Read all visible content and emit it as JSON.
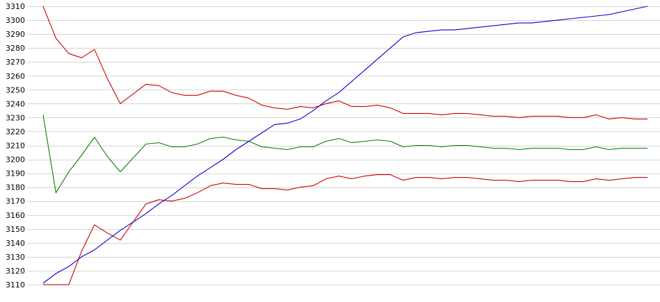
{
  "chart_data": {
    "type": "line",
    "title": "",
    "xlabel": "",
    "ylabel": "",
    "ylim": [
      3110,
      3310
    ],
    "y_ticks": [
      3110,
      3120,
      3130,
      3140,
      3150,
      3160,
      3170,
      3180,
      3190,
      3200,
      3210,
      3220,
      3230,
      3240,
      3250,
      3260,
      3270,
      3280,
      3290,
      3300,
      3310
    ],
    "grid": true,
    "legend": false,
    "x": [
      0,
      1,
      2,
      3,
      4,
      5,
      6,
      7,
      8,
      9,
      10,
      11,
      12,
      13,
      14,
      15,
      16,
      17,
      18,
      19,
      20,
      21,
      22,
      23,
      24,
      25,
      26,
      27,
      28,
      29,
      30,
      31,
      32,
      33,
      34,
      35,
      36,
      37,
      38,
      39,
      40,
      41,
      42,
      43,
      44,
      45,
      46,
      47
    ],
    "series": [
      {
        "color": "#cc0000",
        "values": [
          3310,
          3287,
          3276,
          3273,
          3279,
          3258,
          3240,
          3247,
          3254,
          3253,
          3248,
          3246,
          3246,
          3249,
          3249,
          3246,
          3244,
          3239,
          3237,
          3236,
          3238,
          3237,
          3240,
          3242,
          3238,
          3238,
          3239,
          3237,
          3233,
          3233,
          3233,
          3232,
          3233,
          3233,
          3232,
          3231,
          3231,
          3230,
          3231,
          3231,
          3231,
          3230,
          3230,
          3232,
          3229,
          3230,
          3229,
          3229
        ]
      },
      {
        "color": "#008000",
        "values": [
          3232,
          3176,
          3191,
          3203,
          3216,
          3202,
          3191,
          3201,
          3211,
          3212,
          3209,
          3209,
          3211,
          3215,
          3216,
          3214,
          3213,
          3209,
          3208,
          3207,
          3209,
          3209,
          3213,
          3215,
          3212,
          3213,
          3214,
          3213,
          3209,
          3210,
          3210,
          3209,
          3210,
          3210,
          3209,
          3208,
          3208,
          3207,
          3208,
          3208,
          3208,
          3207,
          3207,
          3209,
          3207,
          3208,
          3208,
          3208
        ]
      },
      {
        "color": "#cc0000",
        "values": [
          3110,
          3110,
          3110,
          3134,
          3153,
          3147,
          3142,
          3155,
          3168,
          3171,
          3170,
          3172,
          3176,
          3181,
          3183,
          3182,
          3182,
          3179,
          3179,
          3178,
          3180,
          3181,
          3186,
          3188,
          3186,
          3188,
          3189,
          3189,
          3185,
          3187,
          3187,
          3186,
          3187,
          3187,
          3186,
          3185,
          3185,
          3184,
          3185,
          3185,
          3185,
          3184,
          3184,
          3186,
          3185,
          3186,
          3187,
          3187
        ]
      },
      {
        "color": "#0000cc",
        "values": [
          3111,
          3118,
          3123,
          3130,
          3135,
          3142,
          3149,
          3155,
          3161,
          3168,
          3174,
          3181,
          3188,
          3194,
          3200,
          3207,
          3213,
          3219,
          3225,
          3226,
          3229,
          3235,
          3242,
          3248,
          3256,
          3264,
          3272,
          3280,
          3288,
          3291,
          3292,
          3293,
          3293,
          3294,
          3295,
          3296,
          3297,
          3298,
          3298,
          3299,
          3300,
          3301,
          3302,
          3303,
          3304,
          3306,
          3308,
          3310
        ]
      }
    ]
  }
}
